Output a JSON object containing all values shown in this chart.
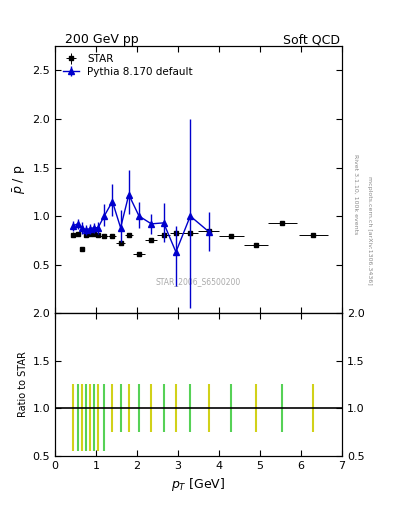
{
  "title_left": "200 GeV pp",
  "title_right": "Soft QCD",
  "ylabel_main": "$\\bar{p}$ / p",
  "ylabel_ratio": "Ratio to STAR",
  "xlabel": "$p_T$ [GeV]",
  "right_label": "Rivet 3.1.10, 100k events",
  "right_label2": "mcplots.cern.ch [arXiv:1306.3436]",
  "watermark": "STAR_2006_S6500200",
  "xlim": [
    0,
    7
  ],
  "ylim_main": [
    0.0,
    2.75
  ],
  "ylim_ratio": [
    0.5,
    2.0
  ],
  "yticks_main": [
    0.5,
    1.0,
    1.5,
    2.0,
    2.5
  ],
  "yticks_ratio": [
    0.5,
    1.0,
    1.5,
    2.0
  ],
  "star_x": [
    0.45,
    0.55,
    0.65,
    0.75,
    0.85,
    0.95,
    1.05,
    1.2,
    1.4,
    1.6,
    1.8,
    2.05,
    2.35,
    2.65,
    2.95,
    3.3,
    3.75,
    4.3,
    4.9,
    5.55,
    6.3
  ],
  "star_y": [
    0.81,
    0.82,
    0.66,
    0.8,
    0.82,
    0.82,
    0.8,
    0.79,
    0.79,
    0.72,
    0.8,
    0.61,
    0.75,
    0.8,
    0.83,
    0.83,
    0.85,
    0.79,
    0.7,
    0.93,
    0.8
  ],
  "star_xerr": [
    0.05,
    0.05,
    0.05,
    0.05,
    0.05,
    0.05,
    0.05,
    0.1,
    0.1,
    0.1,
    0.1,
    0.15,
    0.15,
    0.15,
    0.15,
    0.2,
    0.25,
    0.3,
    0.3,
    0.35,
    0.35
  ],
  "star_yerr": [
    0.03,
    0.02,
    0.02,
    0.02,
    0.02,
    0.02,
    0.02,
    0.02,
    0.02,
    0.02,
    0.02,
    0.02,
    0.02,
    0.02,
    0.02,
    0.02,
    0.02,
    0.02,
    0.02,
    0.02,
    0.02
  ],
  "pythia_x": [
    0.45,
    0.55,
    0.65,
    0.75,
    0.85,
    0.95,
    1.05,
    1.2,
    1.4,
    1.6,
    1.8,
    2.05,
    2.35,
    2.65,
    2.95,
    3.3,
    3.75
  ],
  "pythia_y": [
    0.9,
    0.92,
    0.88,
    0.86,
    0.87,
    0.88,
    0.88,
    1.0,
    1.15,
    0.88,
    1.22,
    1.0,
    0.92,
    0.93,
    0.63,
    1.0,
    0.84
  ],
  "pythia_yerr_lo": [
    0.05,
    0.05,
    0.06,
    0.05,
    0.05,
    0.05,
    0.06,
    0.1,
    0.15,
    0.15,
    0.2,
    0.12,
    0.1,
    0.2,
    0.35,
    0.95,
    0.2
  ],
  "pythia_yerr_hi": [
    0.05,
    0.05,
    0.06,
    0.05,
    0.05,
    0.05,
    0.06,
    0.12,
    0.18,
    0.18,
    0.25,
    0.15,
    0.1,
    0.2,
    0.27,
    1.0,
    0.2
  ],
  "star_color": "#000000",
  "pythia_color": "#0000cc",
  "ratio_line_color": "#000000",
  "ratio_color_yellow": "#cccc00",
  "ratio_color_green": "#44cc44",
  "background_color": "#ffffff"
}
